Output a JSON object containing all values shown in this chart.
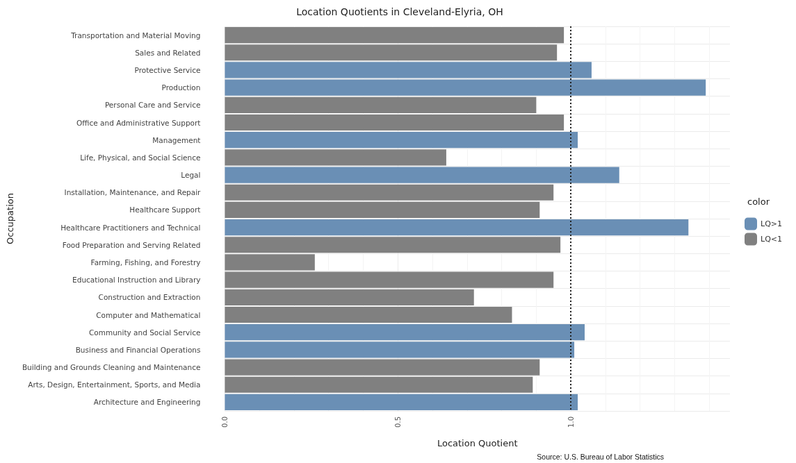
{
  "chart_data": {
    "type": "bar",
    "orientation": "horizontal",
    "title": "Location Quotients in Cleveland-Elyria, OH",
    "xlabel": "Location Quotient",
    "ylabel": "Occupation",
    "legend_title": "color",
    "legend": "right",
    "grid": true,
    "categories": [
      "Transportation and Material Moving",
      "Sales and Related",
      "Protective Service",
      "Production",
      "Personal Care and Service",
      "Office and Administrative Support",
      "Management",
      "Life, Physical, and Social Science",
      "Legal",
      "Installation, Maintenance, and Repair",
      "Healthcare Support",
      "Healthcare Practitioners and Technical",
      "Food Preparation and Serving Related",
      "Farming, Fishing, and Forestry",
      "Educational Instruction and Library",
      "Construction and Extraction",
      "Computer and Mathematical",
      "Community and Social Service",
      "Business and Financial Operations",
      "Building and Grounds Cleaning and Maintenance",
      "Arts, Design, Entertainment, Sports, and Media",
      "Architecture and Engineering"
    ],
    "series": [
      {
        "name": "LQ>1",
        "color": "#6a8fb5",
        "values": [
          null,
          null,
          1.06,
          1.39,
          null,
          null,
          1.02,
          null,
          1.14,
          null,
          null,
          1.34,
          null,
          null,
          null,
          null,
          null,
          1.04,
          1.01,
          null,
          null,
          1.02
        ]
      },
      {
        "name": "LQ<1",
        "color": "#808080",
        "values": [
          0.98,
          0.96,
          null,
          null,
          0.9,
          0.98,
          null,
          0.64,
          null,
          0.95,
          0.91,
          null,
          0.97,
          0.26,
          0.95,
          0.72,
          0.83,
          null,
          null,
          0.91,
          0.89,
          null
        ]
      }
    ],
    "xlim": [
      0,
      1.46
    ],
    "xticks": [
      {
        "value": 0,
        "label": "0.0"
      },
      {
        "value": 0.5,
        "label": "0.5"
      },
      {
        "value": 1,
        "label": "1.0"
      }
    ],
    "ref_lines": [
      {
        "axis": "x",
        "value": 1,
        "label": null,
        "color": "#222222",
        "line_style": "dotted"
      }
    ],
    "annotations": [
      "Source: U.S. Bureau of Labor Statistics"
    ]
  }
}
